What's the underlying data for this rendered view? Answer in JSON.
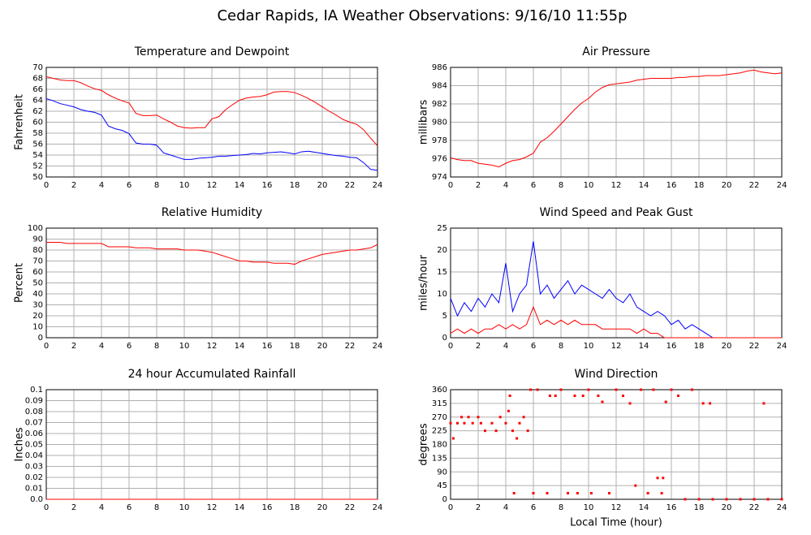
{
  "title": "Cedar Rapids, IA Weather Observations: 9/16/10 11:55p",
  "chart_data": [
    {
      "type": "line",
      "title": "Temperature and Dewpoint",
      "ylabel": "Fahrenheit",
      "x": [
        0,
        0.5,
        1,
        1.5,
        2,
        2.5,
        3,
        3.5,
        4,
        4.5,
        5,
        5.5,
        6,
        6.5,
        7,
        7.5,
        8,
        8.5,
        9,
        9.5,
        10,
        10.5,
        11,
        11.5,
        12,
        12.5,
        13,
        13.5,
        14,
        14.5,
        15,
        15.5,
        16,
        16.5,
        17,
        17.5,
        18,
        18.5,
        19,
        19.5,
        20,
        20.5,
        21,
        21.5,
        22,
        22.5,
        23,
        23.5,
        24
      ],
      "series": [
        {
          "color": "#ff0000",
          "values": [
            68.3,
            68,
            67.7,
            67.6,
            67.6,
            67.2,
            66.6,
            66.1,
            65.8,
            65,
            64.4,
            63.9,
            63.5,
            61.6,
            61.2,
            61.2,
            61.3,
            60.6,
            60,
            59.3,
            59,
            58.9,
            59,
            59,
            60.6,
            61,
            62.3,
            63.2,
            64,
            64.4,
            64.6,
            64.7,
            65,
            65.5,
            65.6,
            65.6,
            65.4,
            64.9,
            64.3,
            63.6,
            62.8,
            62,
            61.3,
            60.5,
            60,
            59.6,
            58.6,
            57.1,
            55.7
          ]
        },
        {
          "color": "#0000ff",
          "values": [
            64.3,
            63.9,
            63.4,
            63.1,
            62.8,
            62.3,
            62,
            61.8,
            61.3,
            59.3,
            58.8,
            58.5,
            57.9,
            56.2,
            56,
            56,
            55.8,
            54.4,
            54,
            53.6,
            53.2,
            53.2,
            53.4,
            53.5,
            53.6,
            53.8,
            53.8,
            53.9,
            54,
            54.1,
            54.3,
            54.2,
            54.4,
            54.5,
            54.6,
            54.4,
            54.2,
            54.6,
            54.7,
            54.5,
            54.3,
            54.1,
            53.9,
            53.8,
            53.6,
            53.5,
            52.6,
            51.4,
            51.2
          ]
        }
      ],
      "xlim": [
        0,
        24
      ],
      "xticks": [
        0,
        2,
        4,
        6,
        8,
        10,
        12,
        14,
        16,
        18,
        20,
        22,
        24
      ],
      "ylim": [
        50,
        70
      ],
      "yticks": [
        50,
        52,
        54,
        56,
        58,
        60,
        62,
        64,
        66,
        68,
        70
      ],
      "grid": true
    },
    {
      "type": "line",
      "title": "Air Pressure",
      "ylabel": "millibars",
      "x": [
        0,
        0.5,
        1,
        1.5,
        2,
        2.5,
        3,
        3.5,
        4,
        4.5,
        5,
        5.5,
        6,
        6.5,
        7,
        7.5,
        8,
        8.5,
        9,
        9.5,
        10,
        10.5,
        11,
        11.5,
        12,
        12.5,
        13,
        13.5,
        14,
        14.5,
        15,
        15.5,
        16,
        16.5,
        17,
        17.5,
        18,
        18.5,
        19,
        19.5,
        20,
        20.5,
        21,
        21.5,
        22,
        22.5,
        23,
        23.5,
        24
      ],
      "series": [
        {
          "color": "#ff0000",
          "values": [
            976.1,
            975.9,
            975.8,
            975.8,
            975.5,
            975.4,
            975.3,
            975.1,
            975.5,
            975.8,
            975.9,
            976.2,
            976.6,
            977.8,
            978.3,
            979,
            979.8,
            980.6,
            981.4,
            982.1,
            982.6,
            983.3,
            983.8,
            984.1,
            984.2,
            984.3,
            984.4,
            984.6,
            984.7,
            984.8,
            984.8,
            984.8,
            984.8,
            984.9,
            984.9,
            985,
            985,
            985.1,
            985.1,
            985.1,
            985.2,
            985.3,
            985.4,
            985.6,
            985.7,
            985.5,
            985.4,
            985.3,
            985.4
          ]
        }
      ],
      "xlim": [
        0,
        24
      ],
      "xticks": [
        0,
        2,
        4,
        6,
        8,
        10,
        12,
        14,
        16,
        18,
        20,
        22,
        24
      ],
      "ylim": [
        974,
        986
      ],
      "yticks": [
        974,
        976,
        978,
        980,
        982,
        984,
        986
      ],
      "grid": true
    },
    {
      "type": "line",
      "title": "Relative Humidity",
      "ylabel": "Percent",
      "x": [
        0,
        0.5,
        1,
        1.5,
        2,
        2.5,
        3,
        3.5,
        4,
        4.5,
        5,
        5.5,
        6,
        6.5,
        7,
        7.5,
        8,
        8.5,
        9,
        9.5,
        10,
        10.5,
        11,
        11.5,
        12,
        12.5,
        13,
        13.5,
        14,
        14.5,
        15,
        15.5,
        16,
        16.5,
        17,
        17.5,
        18,
        18.5,
        19,
        19.5,
        20,
        20.5,
        21,
        21.5,
        22,
        22.5,
        23,
        23.5,
        24
      ],
      "series": [
        {
          "color": "#ff0000",
          "values": [
            87,
            87,
            87,
            86,
            86,
            86,
            86,
            86,
            86,
            83,
            83,
            83,
            83,
            82,
            82,
            82,
            81,
            81,
            81,
            81,
            80,
            80,
            80,
            79,
            78,
            76,
            74,
            72,
            70,
            70,
            69,
            69,
            69,
            68,
            68,
            68,
            67,
            70,
            72,
            74,
            76,
            77,
            78,
            79,
            80,
            80,
            81,
            82,
            85
          ]
        }
      ],
      "xlim": [
        0,
        24
      ],
      "xticks": [
        0,
        2,
        4,
        6,
        8,
        10,
        12,
        14,
        16,
        18,
        20,
        22,
        24
      ],
      "ylim": [
        0,
        100
      ],
      "yticks": [
        0,
        10,
        20,
        30,
        40,
        50,
        60,
        70,
        80,
        90,
        100
      ],
      "grid": true
    },
    {
      "type": "line",
      "title": "Wind Speed and Peak Gust",
      "ylabel": "miles/hour",
      "x": [
        0,
        0.5,
        1,
        1.5,
        2,
        2.5,
        3,
        3.5,
        4,
        4.5,
        5,
        5.5,
        6,
        6.5,
        7,
        7.5,
        8,
        8.5,
        9,
        9.5,
        10,
        10.5,
        11,
        11.5,
        12,
        12.5,
        13,
        13.5,
        14,
        14.5,
        15,
        15.5,
        16,
        16.5,
        17,
        17.5,
        18,
        18.5,
        19,
        19.5,
        20,
        20.5,
        21,
        21.5,
        22,
        22.5,
        23,
        23.5,
        24
      ],
      "series": [
        {
          "color": "#0000ff",
          "values": [
            9,
            5,
            8,
            6,
            9,
            7,
            10,
            8,
            17,
            6,
            10,
            12,
            22,
            10,
            12,
            9,
            11,
            13,
            10,
            12,
            11,
            10,
            9,
            11,
            9,
            8,
            10,
            7,
            6,
            5,
            6,
            5,
            3,
            4,
            2,
            3,
            2,
            1,
            0,
            0,
            0,
            0,
            0,
            0,
            0,
            0,
            0,
            0,
            0
          ]
        },
        {
          "color": "#ff0000",
          "values": [
            1,
            2,
            1,
            2,
            1,
            2,
            2,
            3,
            2,
            3,
            2,
            3,
            7,
            3,
            4,
            3,
            4,
            3,
            4,
            3,
            3,
            3,
            2,
            2,
            2,
            2,
            2,
            1,
            2,
            1,
            1,
            0,
            0,
            0,
            0,
            0,
            0,
            0,
            0,
            0,
            0,
            0,
            0,
            0,
            0,
            0,
            0,
            0,
            0
          ]
        }
      ],
      "xlim": [
        0,
        24
      ],
      "xticks": [
        0,
        2,
        4,
        6,
        8,
        10,
        12,
        14,
        16,
        18,
        20,
        22,
        24
      ],
      "ylim": [
        0,
        25
      ],
      "yticks": [
        0,
        5,
        10,
        15,
        20,
        25
      ],
      "grid": true
    },
    {
      "type": "line",
      "title": "24 hour Accumulated Rainfall",
      "ylabel": "Inches",
      "x": [
        0,
        24
      ],
      "series": [
        {
          "color": "#ff0000",
          "values": [
            0,
            0
          ]
        }
      ],
      "xlim": [
        0,
        24
      ],
      "xticks": [
        0,
        2,
        4,
        6,
        8,
        10,
        12,
        14,
        16,
        18,
        20,
        22,
        24
      ],
      "ylim": [
        0,
        0.1
      ],
      "yticks": [
        {
          "value": 0,
          "label": "0.0"
        },
        0.01,
        0.02,
        0.03,
        0.04,
        0.05,
        0.06,
        0.07,
        0.08,
        0.09,
        0.1
      ],
      "grid": true
    },
    {
      "type": "scatter",
      "title": "Wind Direction",
      "ylabel": "degrees",
      "xlabel": "Local Time (hour)",
      "x": [
        0,
        0.2,
        0.5,
        0.8,
        1,
        1.3,
        1.6,
        2,
        2.2,
        2.5,
        3,
        3.3,
        3.6,
        4,
        4.2,
        4.3,
        4.5,
        4.6,
        4.8,
        5,
        5.3,
        5.6,
        5.8,
        6,
        6.3,
        7,
        7.2,
        7.6,
        8,
        8.5,
        9,
        9.2,
        9.6,
        10,
        10.2,
        10.7,
        11,
        11.5,
        12,
        12.5,
        13,
        13.4,
        13.8,
        14.3,
        14.7,
        15,
        15.3,
        15.4,
        15.6,
        16,
        16.5,
        17,
        17.5,
        18,
        18.3,
        18.8,
        19,
        20,
        21,
        22,
        22.7,
        23,
        24
      ],
      "series": [
        {
          "color": "#ff0000",
          "values": [
            250,
            200,
            250,
            270,
            250,
            270,
            250,
            270,
            250,
            225,
            250,
            225,
            270,
            250,
            290,
            340,
            225,
            20,
            200,
            250,
            270,
            225,
            360,
            20,
            360,
            20,
            340,
            340,
            360,
            20,
            340,
            20,
            340,
            360,
            20,
            340,
            320,
            20,
            360,
            340,
            315,
            45,
            360,
            20,
            360,
            70,
            20,
            70,
            320,
            360,
            340,
            0,
            360,
            0,
            315,
            315,
            0,
            0,
            0,
            0,
            315,
            0,
            0
          ]
        }
      ],
      "xlim": [
        0,
        24
      ],
      "xticks": [
        0,
        2,
        4,
        6,
        8,
        10,
        12,
        14,
        16,
        18,
        20,
        22,
        24
      ],
      "ylim": [
        0,
        360
      ],
      "yticks": [
        0,
        45,
        90,
        135,
        180,
        225,
        270,
        315,
        360
      ],
      "grid": true
    }
  ]
}
